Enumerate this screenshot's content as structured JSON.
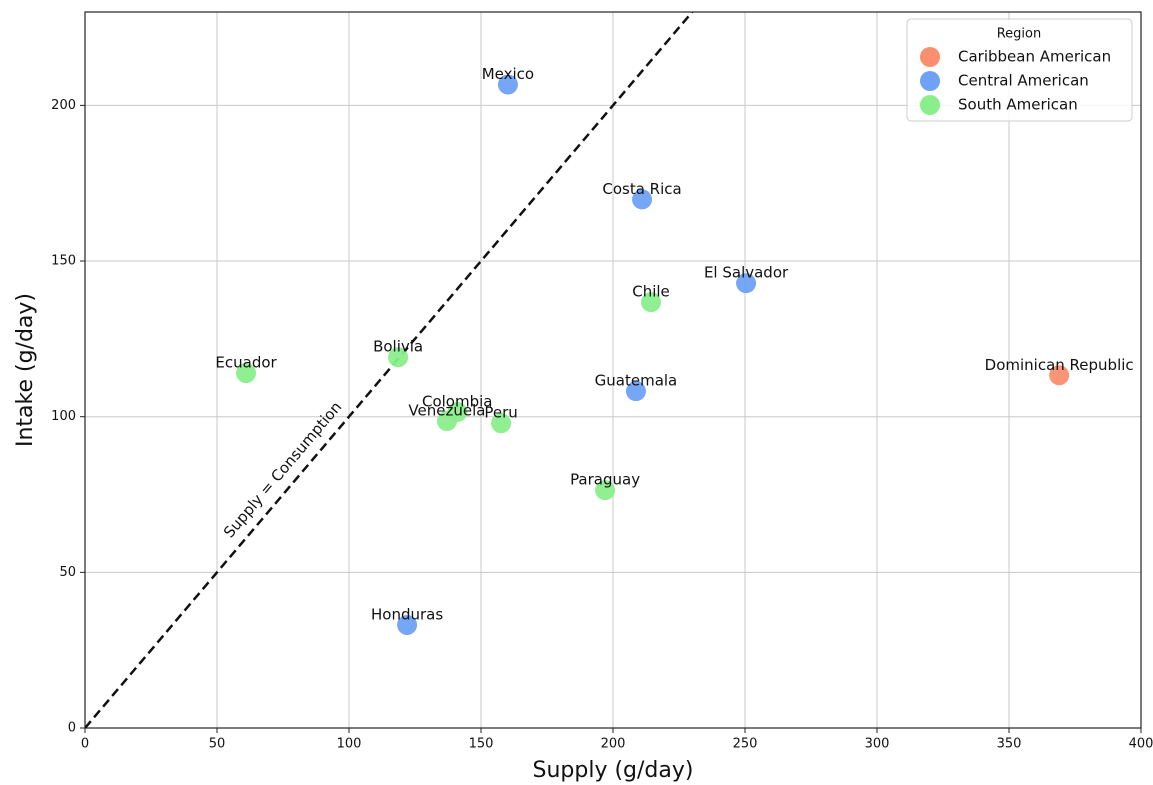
{
  "chart_data": {
    "type": "scatter",
    "xlabel": "Supply (g/day)",
    "ylabel": "Intake (g/day)",
    "xlim": [
      0,
      400
    ],
    "xticks": [
      0,
      50,
      100,
      150,
      200,
      250,
      300,
      350,
      400
    ],
    "ylim": [
      0,
      230
    ],
    "yticks": [
      0,
      50,
      100,
      150,
      200
    ],
    "grid": true,
    "legend": {
      "title": "Region",
      "position": "upper right"
    },
    "annotations": [
      {
        "text": "Supply = Consumption"
      }
    ],
    "series": [
      {
        "name": "Caribbean American",
        "color": "#f98f6f",
        "labels": [
          "Dominican Republic"
        ],
        "x": [
          369
        ],
        "values": [
          113.3
        ]
      },
      {
        "name": "Central American",
        "color": "#6fa1f6",
        "labels": [
          "Mexico",
          "Costa Rica",
          "El Salvador",
          "Guatemala",
          "Honduras"
        ],
        "x": [
          160.2,
          211,
          250.4,
          208.7,
          122
        ],
        "values": [
          206.7,
          169.8,
          142.9,
          108.2,
          33.1
        ]
      },
      {
        "name": "South American",
        "color": "#8aee8a",
        "labels": [
          "Chile",
          "Ecuador",
          "Bolivia",
          "Colombia",
          "Venezuela",
          "Peru",
          "Paraguay"
        ],
        "x": [
          214.4,
          61,
          118.6,
          141,
          137.1,
          157.6,
          197
        ],
        "values": [
          136.8,
          114,
          119.1,
          101.5,
          98.6,
          97.9,
          76.4
        ]
      }
    ]
  }
}
